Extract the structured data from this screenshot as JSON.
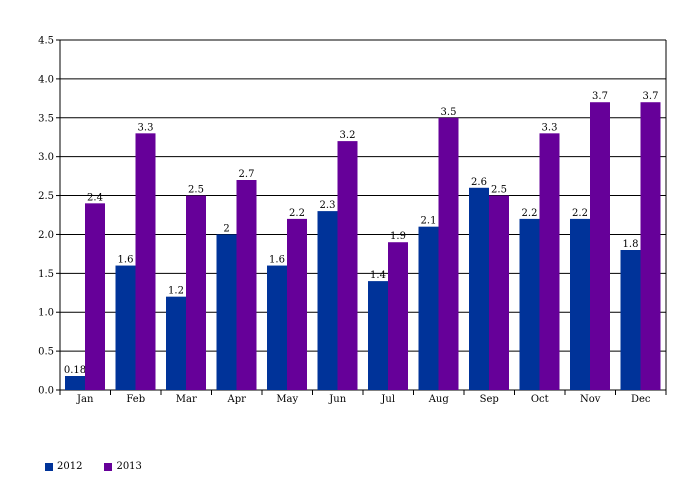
{
  "chart_data": {
    "type": "bar",
    "categories": [
      "Jan",
      "Feb",
      "Mar",
      "Apr",
      "May",
      "Jun",
      "Jul",
      "Aug",
      "Sep",
      "Oct",
      "Nov",
      "Dec"
    ],
    "series": [
      {
        "name": "2012",
        "color": "#003399",
        "values": [
          0.18,
          1.6,
          1.2,
          2,
          1.6,
          2.3,
          1.4,
          2.1,
          2.6,
          2.2,
          2.2,
          1.8
        ],
        "labels": [
          "0.18",
          "1.6",
          "1.2",
          "2",
          "1.6",
          "2.3",
          "1.4",
          "2.1",
          "2.6",
          "2.2",
          "2.2",
          "1.8"
        ]
      },
      {
        "name": "2013",
        "color": "#660099",
        "values": [
          2.4,
          3.3,
          2.5,
          2.7,
          2.2,
          3.2,
          1.9,
          3.5,
          2.5,
          3.3,
          3.7,
          3.7
        ],
        "labels": [
          "2.4",
          "3.3",
          "2.5",
          "2.7",
          "2.2",
          "3.2",
          "1.9",
          "3.5",
          "2.5",
          "3.3",
          "3.7",
          "3.7"
        ]
      }
    ],
    "ylim": [
      0,
      4.5
    ],
    "yticks": [
      "0.0",
      "0.5",
      "1.0",
      "1.5",
      "2.0",
      "2.5",
      "3.0",
      "3.5",
      "4.0",
      "4.5"
    ],
    "grid": true,
    "legend_position": "bottom-left",
    "title": "",
    "xlabel": "",
    "ylabel": ""
  }
}
